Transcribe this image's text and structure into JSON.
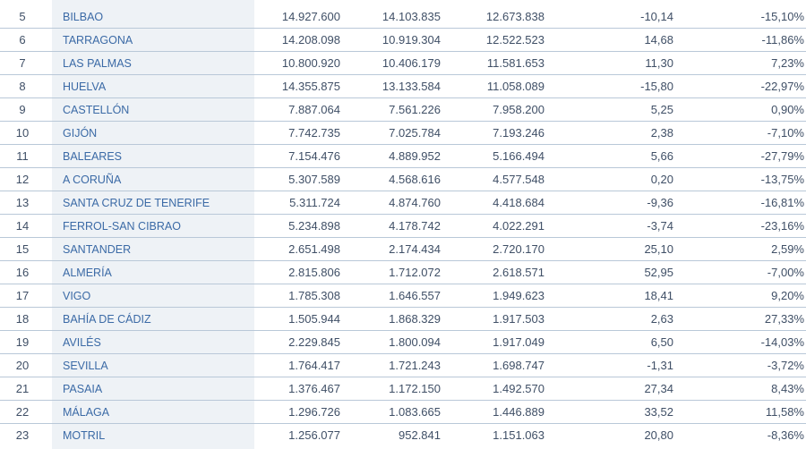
{
  "rows": [
    {
      "rank": "5",
      "port": "BILBAO",
      "v1": "14.927.600",
      "v2": "14.103.835",
      "v3": "12.673.838",
      "pct1": "-10,14",
      "pct2": "-15,10%"
    },
    {
      "rank": "6",
      "port": "TARRAGONA",
      "v1": "14.208.098",
      "v2": "10.919.304",
      "v3": "12.522.523",
      "pct1": "14,68",
      "pct2": "-11,86%"
    },
    {
      "rank": "7",
      "port": "LAS PALMAS",
      "v1": "10.800.920",
      "v2": "10.406.179",
      "v3": "11.581.653",
      "pct1": "11,30",
      "pct2": "7,23%"
    },
    {
      "rank": "8",
      "port": "HUELVA",
      "v1": "14.355.875",
      "v2": "13.133.584",
      "v3": "11.058.089",
      "pct1": "-15,80",
      "pct2": "-22,97%"
    },
    {
      "rank": "9",
      "port": "CASTELLÓN",
      "v1": "7.887.064",
      "v2": "7.561.226",
      "v3": "7.958.200",
      "pct1": "5,25",
      "pct2": "0,90%"
    },
    {
      "rank": "10",
      "port": "GIJÓN",
      "v1": "7.742.735",
      "v2": "7.025.784",
      "v3": "7.193.246",
      "pct1": "2,38",
      "pct2": "-7,10%"
    },
    {
      "rank": "11",
      "port": "BALEARES",
      "v1": "7.154.476",
      "v2": "4.889.952",
      "v3": "5.166.494",
      "pct1": "5,66",
      "pct2": "-27,79%"
    },
    {
      "rank": "12",
      "port": "A CORUÑA",
      "v1": "5.307.589",
      "v2": "4.568.616",
      "v3": "4.577.548",
      "pct1": "0,20",
      "pct2": "-13,75%"
    },
    {
      "rank": "13",
      "port": "SANTA CRUZ DE TENERIFE",
      "v1": "5.311.724",
      "v2": "4.874.760",
      "v3": "4.418.684",
      "pct1": "-9,36",
      "pct2": "-16,81%"
    },
    {
      "rank": "14",
      "port": "FERROL-SAN CIBRAO",
      "v1": "5.234.898",
      "v2": "4.178.742",
      "v3": "4.022.291",
      "pct1": "-3,74",
      "pct2": "-23,16%"
    },
    {
      "rank": "15",
      "port": "SANTANDER",
      "v1": "2.651.498",
      "v2": "2.174.434",
      "v3": "2.720.170",
      "pct1": "25,10",
      "pct2": "2,59%"
    },
    {
      "rank": "16",
      "port": "ALMERÍA",
      "v1": "2.815.806",
      "v2": "1.712.072",
      "v3": "2.618.571",
      "pct1": "52,95",
      "pct2": "-7,00%"
    },
    {
      "rank": "17",
      "port": "VIGO",
      "v1": "1.785.308",
      "v2": "1.646.557",
      "v3": "1.949.623",
      "pct1": "18,41",
      "pct2": "9,20%"
    },
    {
      "rank": "18",
      "port": "BAHÍA DE CÁDIZ",
      "v1": "1.505.944",
      "v2": "1.868.329",
      "v3": "1.917.503",
      "pct1": "2,63",
      "pct2": "27,33%"
    },
    {
      "rank": "19",
      "port": "AVILÉS",
      "v1": "2.229.845",
      "v2": "1.800.094",
      "v3": "1.917.049",
      "pct1": "6,50",
      "pct2": "-14,03%"
    },
    {
      "rank": "20",
      "port": "SEVILLA",
      "v1": "1.764.417",
      "v2": "1.721.243",
      "v3": "1.698.747",
      "pct1": "-1,31",
      "pct2": "-3,72%"
    },
    {
      "rank": "21",
      "port": "PASAIA",
      "v1": "1.376.467",
      "v2": "1.172.150",
      "v3": "1.492.570",
      "pct1": "27,34",
      "pct2": "8,43%"
    },
    {
      "rank": "22",
      "port": "MÁLAGA",
      "v1": "1.296.726",
      "v2": "1.083.665",
      "v3": "1.446.889",
      "pct1": "33,52",
      "pct2": "11,58%"
    },
    {
      "rank": "23",
      "port": "MOTRIL",
      "v1": "1.256.077",
      "v2": "952.841",
      "v3": "1.151.063",
      "pct1": "20,80",
      "pct2": "-8,36%"
    }
  ]
}
